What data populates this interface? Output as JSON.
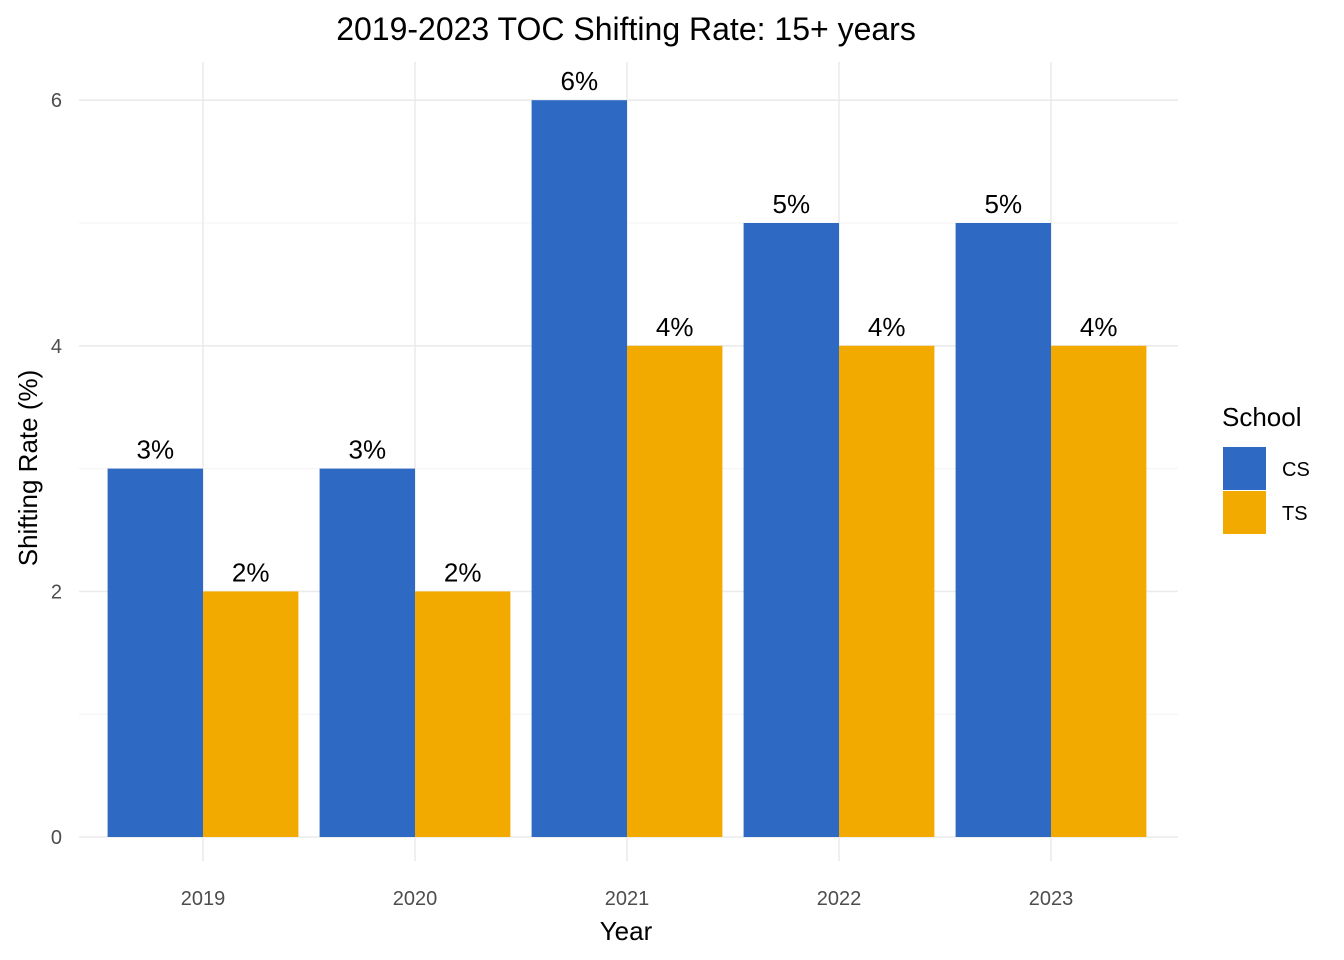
{
  "chart_data": {
    "type": "bar",
    "title": "2019-2023 TOC Shifting Rate: 15+ years",
    "xlabel": "Year",
    "ylabel": "Shifting Rate (%)",
    "categories": [
      "2019",
      "2020",
      "2021",
      "2022",
      "2023"
    ],
    "series": [
      {
        "name": "CS",
        "values": [
          3,
          3,
          6,
          5,
          5
        ],
        "labels": [
          "3%",
          "3%",
          "6%",
          "5%",
          "5%"
        ],
        "color": "#2E69C4"
      },
      {
        "name": "TS",
        "values": [
          2,
          2,
          4,
          4,
          4
        ],
        "labels": [
          "2%",
          "2%",
          "4%",
          "4%",
          "4%"
        ],
        "color": "#F2AA00"
      }
    ],
    "ylim": [
      0,
      6.3
    ],
    "yticks": [
      0,
      2,
      4,
      6
    ],
    "grid": true,
    "legend": {
      "title": "School",
      "position": "right"
    }
  }
}
